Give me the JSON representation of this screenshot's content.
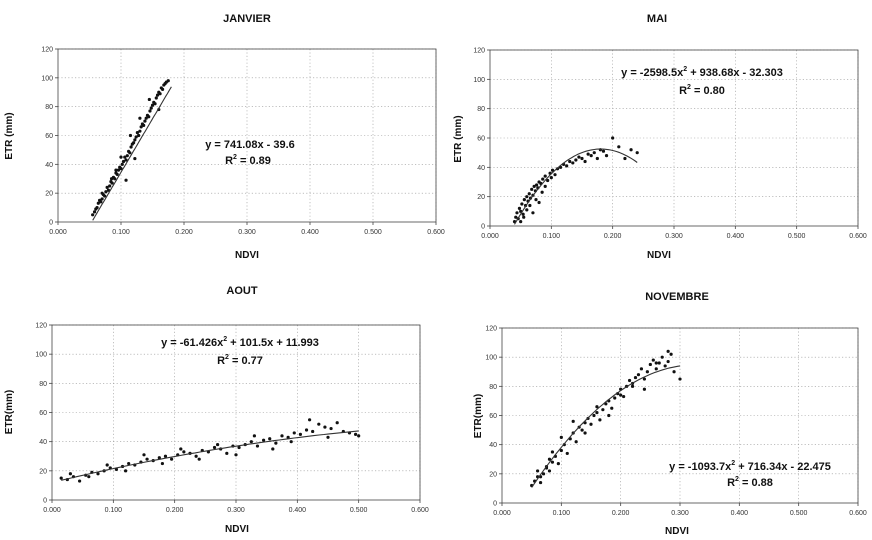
{
  "chart_data": [
    {
      "type": "scatter",
      "title": "JANVIER",
      "xlabel": "NDVI",
      "ylabel": "ETR (mm)",
      "xlim": [
        0,
        0.6
      ],
      "ylim": [
        0,
        120
      ],
      "xticks": [
        "0.000",
        "0.100",
        "0.200",
        "0.300",
        "0.400",
        "0.500",
        "0.600"
      ],
      "yticks": [
        "0",
        "20",
        "40",
        "60",
        "80",
        "100",
        "120"
      ],
      "grid": true,
      "equation": "y = 741.08x - 39.6",
      "r2_prefix": "R",
      "r2_exp": "2",
      "r2_value": " = 0.89",
      "fit": {
        "kind": "linear",
        "coeffs": [
          741.08,
          -39.6
        ],
        "x_range": [
          0.055,
          0.18
        ]
      },
      "points_x": [
        0.055,
        0.058,
        0.06,
        0.062,
        0.064,
        0.066,
        0.068,
        0.07,
        0.072,
        0.074,
        0.076,
        0.078,
        0.08,
        0.082,
        0.084,
        0.086,
        0.088,
        0.09,
        0.092,
        0.094,
        0.096,
        0.098,
        0.1,
        0.102,
        0.104,
        0.106,
        0.108,
        0.11,
        0.112,
        0.114,
        0.116,
        0.118,
        0.12,
        0.122,
        0.124,
        0.126,
        0.128,
        0.13,
        0.132,
        0.134,
        0.136,
        0.138,
        0.14,
        0.142,
        0.144,
        0.146,
        0.148,
        0.15,
        0.152,
        0.154,
        0.156,
        0.158,
        0.16,
        0.162,
        0.164,
        0.166,
        0.168,
        0.17,
        0.172,
        0.175,
        0.07,
        0.085,
        0.1,
        0.115,
        0.13,
        0.145,
        0.16,
        0.122,
        0.108,
        0.092
      ],
      "points_y": [
        5,
        7,
        9,
        10,
        13,
        15,
        14,
        16,
        19,
        18,
        21,
        24,
        22,
        25,
        28,
        27,
        31,
        30,
        34,
        33,
        36,
        38,
        37,
        40,
        42,
        45,
        43,
        46,
        49,
        48,
        52,
        54,
        55,
        57,
        59,
        62,
        60,
        63,
        66,
        68,
        67,
        70,
        72,
        74,
        73,
        77,
        79,
        81,
        83,
        82,
        86,
        88,
        90,
        89,
        93,
        92,
        95,
        96,
        97,
        98,
        20,
        30,
        45,
        60,
        72,
        85,
        78,
        44,
        29,
        36
      ]
    },
    {
      "type": "scatter",
      "title": "MAI",
      "xlabel": "NDVI",
      "ylabel": "ETR (mm)",
      "xlim": [
        0,
        0.6
      ],
      "ylim": [
        0,
        120
      ],
      "xticks": [
        "0.000",
        "0.100",
        "0.200",
        "0.300",
        "0.400",
        "0.500",
        "0.600"
      ],
      "yticks": [
        "0",
        "20",
        "40",
        "60",
        "80",
        "100",
        "120"
      ],
      "grid": true,
      "equation_head": "y = -2598.5x",
      "equation_exp": "2",
      "equation_tail": " + 938.68x - 32.303",
      "r2_prefix": "R",
      "r2_exp": "2",
      "r2_value": " = 0.80",
      "fit": {
        "kind": "quadratic",
        "coeffs": [
          -2598.5,
          938.68,
          -32.303
        ],
        "x_range": [
          0.04,
          0.24
        ]
      },
      "points_x": [
        0.04,
        0.042,
        0.044,
        0.046,
        0.048,
        0.05,
        0.052,
        0.054,
        0.056,
        0.058,
        0.06,
        0.062,
        0.064,
        0.066,
        0.068,
        0.07,
        0.072,
        0.074,
        0.076,
        0.078,
        0.08,
        0.083,
        0.086,
        0.09,
        0.094,
        0.098,
        0.102,
        0.106,
        0.11,
        0.115,
        0.12,
        0.125,
        0.13,
        0.135,
        0.14,
        0.145,
        0.15,
        0.155,
        0.16,
        0.165,
        0.17,
        0.175,
        0.18,
        0.185,
        0.19,
        0.2,
        0.21,
        0.22,
        0.23,
        0.24,
        0.05,
        0.055,
        0.06,
        0.065,
        0.07,
        0.075,
        0.08,
        0.085,
        0.09,
        0.1
      ],
      "points_y": [
        3,
        6,
        9,
        5,
        12,
        10,
        15,
        8,
        18,
        14,
        20,
        17,
        22,
        19,
        25,
        21,
        27,
        24,
        28,
        26,
        30,
        29,
        32,
        34,
        31,
        36,
        38,
        35,
        39,
        40,
        42,
        41,
        44,
        43,
        45,
        47,
        46,
        44,
        49,
        48,
        50,
        46,
        52,
        51,
        48,
        60,
        54,
        46,
        52,
        50,
        3,
        6,
        11,
        14,
        9,
        18,
        16,
        23,
        27,
        33
      ]
    },
    {
      "type": "scatter",
      "title": "AOUT",
      "xlabel": "NDVI",
      "ylabel": "ETR(mm)",
      "xlim": [
        0,
        0.6
      ],
      "ylim": [
        0,
        120
      ],
      "xticks": [
        "0.000",
        "0.100",
        "0.200",
        "0.300",
        "0.400",
        "0.500",
        "0.600"
      ],
      "yticks": [
        "0",
        "20",
        "40",
        "60",
        "80",
        "100",
        "120"
      ],
      "grid": true,
      "equation_head": "y = -61.426x",
      "equation_exp": "2",
      "equation_tail": " + 101.5x + 11.993",
      "r2_prefix": "R",
      "r2_exp": "2",
      "r2_value": " = 0.77",
      "fit": {
        "kind": "quadratic",
        "coeffs": [
          -61.426,
          101.5,
          11.993
        ],
        "x_range": [
          0.015,
          0.5
        ]
      },
      "points_x": [
        0.015,
        0.025,
        0.035,
        0.045,
        0.055,
        0.065,
        0.075,
        0.085,
        0.095,
        0.105,
        0.115,
        0.125,
        0.135,
        0.145,
        0.155,
        0.165,
        0.175,
        0.185,
        0.195,
        0.205,
        0.215,
        0.225,
        0.235,
        0.245,
        0.255,
        0.265,
        0.275,
        0.285,
        0.295,
        0.305,
        0.315,
        0.325,
        0.335,
        0.345,
        0.355,
        0.365,
        0.375,
        0.385,
        0.395,
        0.405,
        0.415,
        0.425,
        0.435,
        0.445,
        0.455,
        0.465,
        0.475,
        0.485,
        0.495,
        0.5,
        0.03,
        0.06,
        0.09,
        0.12,
        0.15,
        0.18,
        0.21,
        0.24,
        0.27,
        0.3,
        0.33,
        0.36,
        0.39,
        0.42,
        0.45
      ],
      "points_y": [
        15,
        14,
        16,
        13,
        17,
        19,
        18,
        20,
        22,
        21,
        23,
        25,
        24,
        26,
        28,
        27,
        29,
        30,
        28,
        31,
        33,
        32,
        30,
        34,
        33,
        36,
        35,
        32,
        37,
        36,
        38,
        40,
        37,
        41,
        42,
        39,
        44,
        43,
        46,
        45,
        48,
        47,
        52,
        50,
        49,
        53,
        47,
        46,
        45,
        44,
        18,
        16,
        24,
        20,
        31,
        25,
        35,
        28,
        38,
        31,
        44,
        35,
        40,
        55,
        43
      ]
    },
    {
      "type": "scatter",
      "title": "NOVEMBRE",
      "xlabel": "NDVI",
      "ylabel": "ETR(mm)",
      "xlim": [
        0,
        0.6
      ],
      "ylim": [
        0,
        120
      ],
      "xticks": [
        "0.000",
        "0.100",
        "0.200",
        "0.300",
        "0.400",
        "0.500",
        "0.600"
      ],
      "yticks": [
        "0",
        "20",
        "40",
        "60",
        "80",
        "100",
        "120"
      ],
      "grid": true,
      "equation_head": "y = -1093.7x",
      "equation_exp": "2",
      "equation_tail": " + 716.34x - 22.475",
      "r2_prefix": "R",
      "r2_exp": "2",
      "r2_value": " = 0.88",
      "fit": {
        "kind": "quadratic",
        "coeffs": [
          -1093.7,
          716.34,
          -22.475
        ],
        "x_range": [
          0.05,
          0.3
        ]
      },
      "points_x": [
        0.05,
        0.055,
        0.06,
        0.065,
        0.07,
        0.075,
        0.08,
        0.085,
        0.09,
        0.095,
        0.1,
        0.105,
        0.11,
        0.115,
        0.12,
        0.125,
        0.13,
        0.135,
        0.14,
        0.145,
        0.15,
        0.155,
        0.16,
        0.165,
        0.17,
        0.175,
        0.18,
        0.185,
        0.19,
        0.195,
        0.2,
        0.205,
        0.21,
        0.215,
        0.22,
        0.225,
        0.23,
        0.235,
        0.24,
        0.245,
        0.25,
        0.255,
        0.26,
        0.265,
        0.27,
        0.275,
        0.28,
        0.285,
        0.29,
        0.3,
        0.06,
        0.08,
        0.1,
        0.12,
        0.14,
        0.16,
        0.18,
        0.2,
        0.22,
        0.24,
        0.26,
        0.28,
        0.065,
        0.075,
        0.085
      ],
      "points_y": [
        12,
        15,
        18,
        14,
        20,
        25,
        22,
        28,
        32,
        27,
        36,
        40,
        34,
        44,
        48,
        42,
        52,
        50,
        55,
        58,
        54,
        60,
        62,
        57,
        64,
        68,
        70,
        65,
        72,
        75,
        78,
        73,
        80,
        84,
        82,
        86,
        88,
        92,
        85,
        90,
        95,
        98,
        92,
        96,
        100,
        94,
        97,
        102,
        90,
        85,
        22,
        30,
        45,
        56,
        48,
        66,
        60,
        74,
        80,
        78,
        96,
        104,
        18,
        24,
        35
      ]
    }
  ]
}
